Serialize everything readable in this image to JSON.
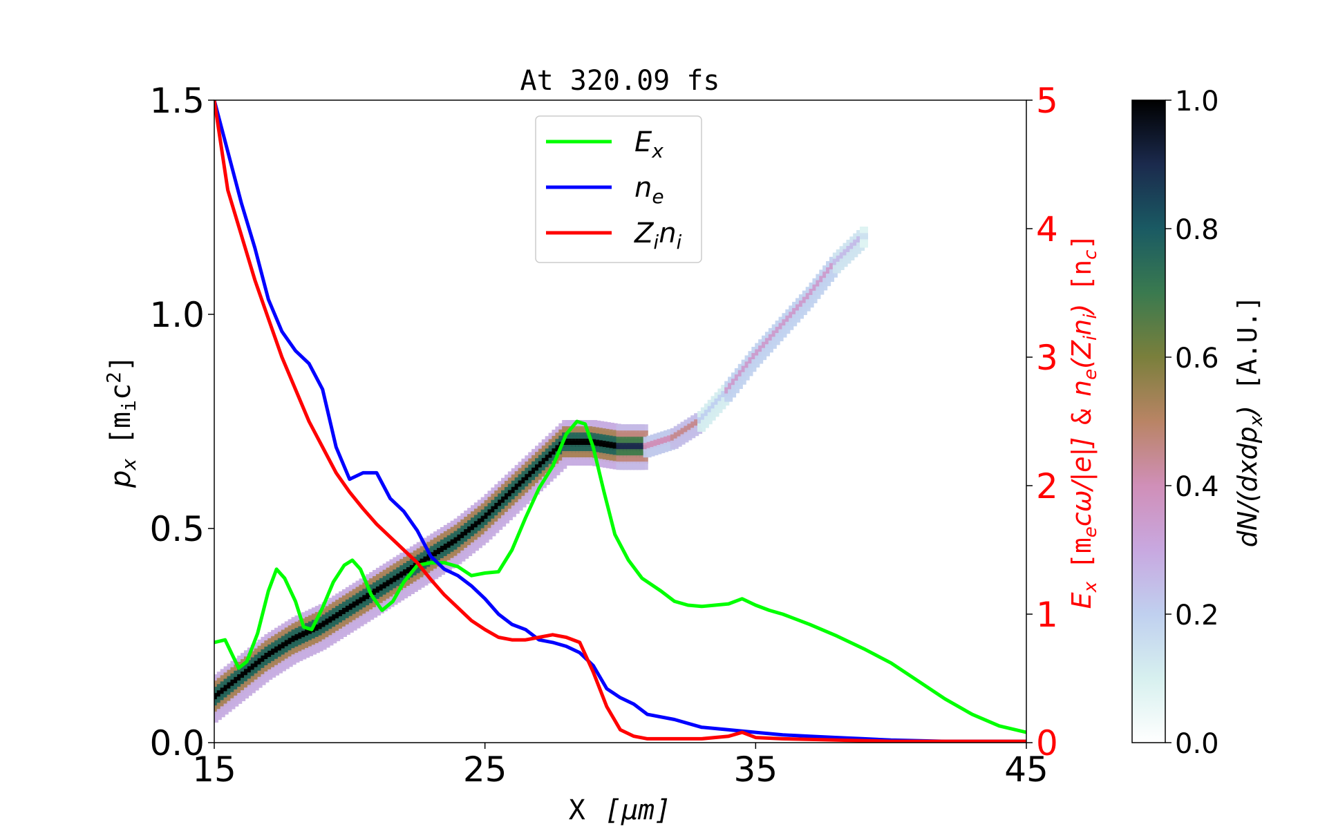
{
  "chart_data": {
    "type": "line",
    "title": "At 320.09 fs",
    "xlabel": {
      "main": "X",
      "unit": "[μm]"
    },
    "ylabel_left": {
      "sym": "p",
      "sub": "x",
      "unit": "[m",
      "unit_sub": "i",
      "unit_tail": "c",
      "unit_sup": "2",
      "unit_close": "]"
    },
    "ylabel_right": {
      "part1": "E",
      "part1_sub": "x",
      "part2": "[m",
      "part2_sub": "e",
      "part3": "cω/|e|]",
      "amp": "&",
      "part4": "n",
      "part4_sub": "e",
      "part5": "(Z",
      "part5_sub": "i",
      "part6": "n",
      "part6_sub": "i",
      "part7": ")",
      "part8": "[n",
      "part8_sub": "c",
      "part9": "]"
    },
    "colorbar_label": {
      "a": "dN/(dxdp",
      "a_sub": "x",
      "a_close": ")",
      "unit": "[A.U.]"
    },
    "xlim": [
      15,
      45
    ],
    "ylim_left": [
      0,
      1.5
    ],
    "ylim_right": [
      0,
      5
    ],
    "colorbar_lim": [
      0,
      1
    ],
    "xticks": [
      "15",
      "25",
      "35",
      "45"
    ],
    "xtick_values": [
      15,
      25,
      35,
      45
    ],
    "yticks_left": [
      "0.0",
      "0.5",
      "1.0",
      "1.5"
    ],
    "ytick_values_left": [
      0,
      0.5,
      1.0,
      1.5
    ],
    "yticks_right": [
      "0",
      "1",
      "2",
      "3",
      "4",
      "5"
    ],
    "ytick_values_right": [
      0,
      1,
      2,
      3,
      4,
      5
    ],
    "colorbar_ticks": [
      "0.0",
      "0.2",
      "0.4",
      "0.6",
      "0.8",
      "1.0"
    ],
    "colorbar_tick_values": [
      0,
      0.2,
      0.4,
      0.6,
      0.8,
      1.0
    ],
    "legend": {
      "placement": "top-center",
      "entries": [
        {
          "sym": "E",
          "sub": "x",
          "color": "#00ff00"
        },
        {
          "sym": "n",
          "sub": "e",
          "color": "#0000ff"
        },
        {
          "sym": "Z",
          "sub": "i",
          "sym2": "n",
          "sub2": "i",
          "color": "#ff0000"
        }
      ]
    },
    "series": [
      {
        "key": "Ex",
        "axis": "right",
        "color": "#00ff00",
        "x": [
          15,
          15.4,
          15.9,
          16.2,
          16.6,
          17.0,
          17.3,
          17.6,
          18.0,
          18.3,
          18.6,
          19.0,
          19.4,
          19.8,
          20.1,
          20.4,
          20.8,
          21.2,
          21.6,
          22.0,
          22.5,
          23.0,
          23.5,
          24.0,
          24.5,
          25.0,
          25.5,
          26.0,
          26.5,
          27.0,
          27.5,
          28.0,
          28.4,
          28.7,
          29.0,
          29.4,
          29.8,
          30.3,
          30.8,
          31.5,
          32.0,
          32.5,
          33.0,
          33.5,
          34.0,
          34.5,
          35.0,
          35.5,
          36.0,
          37.0,
          38.0,
          39.0,
          40.0,
          41.0,
          42.0,
          43.0,
          44.0,
          45.0
        ],
        "y": [
          0.78,
          0.8,
          0.58,
          0.63,
          0.85,
          1.18,
          1.35,
          1.28,
          1.1,
          0.9,
          0.88,
          1.05,
          1.25,
          1.38,
          1.42,
          1.35,
          1.15,
          1.03,
          1.1,
          1.25,
          1.38,
          1.4,
          1.4,
          1.37,
          1.3,
          1.32,
          1.33,
          1.5,
          1.75,
          1.98,
          2.15,
          2.4,
          2.5,
          2.48,
          2.3,
          1.95,
          1.62,
          1.42,
          1.28,
          1.18,
          1.1,
          1.07,
          1.06,
          1.07,
          1.08,
          1.12,
          1.07,
          1.03,
          1.0,
          0.92,
          0.83,
          0.73,
          0.62,
          0.48,
          0.34,
          0.22,
          0.13,
          0.08
        ]
      },
      {
        "key": "ne",
        "axis": "right",
        "color": "#0000ff",
        "x": [
          15,
          15.5,
          16.0,
          16.5,
          17.0,
          17.5,
          18.0,
          18.5,
          19.0,
          19.5,
          20.0,
          20.5,
          21.0,
          21.5,
          22.0,
          22.5,
          23.0,
          23.5,
          24.0,
          24.5,
          25.0,
          25.5,
          26.0,
          26.5,
          27.0,
          27.5,
          28.0,
          28.5,
          29.0,
          29.5,
          30.0,
          30.5,
          31.0,
          32.0,
          33.0,
          34.0,
          35.0,
          36.0,
          37.0,
          38.0,
          39.0,
          40.0,
          42.0,
          45.0
        ],
        "y": [
          5.0,
          4.6,
          4.2,
          3.85,
          3.45,
          3.2,
          3.05,
          2.95,
          2.75,
          2.3,
          2.05,
          2.1,
          2.1,
          1.9,
          1.8,
          1.65,
          1.45,
          1.35,
          1.3,
          1.22,
          1.12,
          1.0,
          0.92,
          0.88,
          0.8,
          0.78,
          0.75,
          0.7,
          0.6,
          0.42,
          0.35,
          0.3,
          0.22,
          0.18,
          0.12,
          0.1,
          0.08,
          0.06,
          0.05,
          0.04,
          0.03,
          0.02,
          0.01,
          0.01
        ]
      },
      {
        "key": "Zini",
        "axis": "right",
        "color": "#ff0000",
        "x": [
          15,
          15.5,
          16.0,
          16.5,
          17.0,
          17.5,
          18.0,
          18.5,
          19.0,
          19.5,
          20.0,
          20.5,
          21.0,
          21.5,
          22.0,
          22.5,
          23.0,
          23.5,
          24.0,
          24.5,
          25.0,
          25.5,
          26.0,
          26.5,
          27.0,
          27.5,
          28.0,
          28.5,
          29.0,
          29.5,
          30.0,
          30.5,
          31.0,
          32.0,
          33.0,
          34.0,
          34.5,
          35.0,
          36.0,
          38.0,
          40.0,
          42.0,
          45.0
        ],
        "y": [
          5.0,
          4.3,
          3.95,
          3.6,
          3.3,
          3.0,
          2.75,
          2.5,
          2.3,
          2.1,
          1.95,
          1.82,
          1.7,
          1.6,
          1.5,
          1.4,
          1.27,
          1.15,
          1.05,
          0.95,
          0.88,
          0.82,
          0.8,
          0.8,
          0.82,
          0.84,
          0.82,
          0.78,
          0.55,
          0.28,
          0.1,
          0.05,
          0.03,
          0.03,
          0.03,
          0.05,
          0.08,
          0.04,
          0.03,
          0.02,
          0.01,
          0.01,
          0.01
        ]
      }
    ],
    "phase_space": {
      "axis": "left",
      "colormap": "cubehelix_r",
      "points": [
        {
          "x": 15.0,
          "px": 0.1,
          "w": 1.0
        },
        {
          "x": 16.0,
          "px": 0.15,
          "w": 1.0
        },
        {
          "x": 17.0,
          "px": 0.2,
          "w": 1.0
        },
        {
          "x": 18.0,
          "px": 0.24,
          "w": 1.0
        },
        {
          "x": 19.0,
          "px": 0.27,
          "w": 1.0
        },
        {
          "x": 20.0,
          "px": 0.31,
          "w": 1.0
        },
        {
          "x": 21.0,
          "px": 0.35,
          "w": 1.0
        },
        {
          "x": 22.0,
          "px": 0.39,
          "w": 1.0
        },
        {
          "x": 23.0,
          "px": 0.43,
          "w": 1.0
        },
        {
          "x": 24.0,
          "px": 0.47,
          "w": 1.0
        },
        {
          "x": 25.0,
          "px": 0.52,
          "w": 1.0
        },
        {
          "x": 26.0,
          "px": 0.58,
          "w": 1.0
        },
        {
          "x": 27.0,
          "px": 0.64,
          "w": 1.0
        },
        {
          "x": 28.0,
          "px": 0.7,
          "w": 1.0
        },
        {
          "x": 29.0,
          "px": 0.7,
          "w": 1.0
        },
        {
          "x": 30.0,
          "px": 0.69,
          "w": 0.9
        },
        {
          "x": 31.0,
          "px": 0.69,
          "w": 0.4
        },
        {
          "x": 32.0,
          "px": 0.71,
          "w": 0.45
        },
        {
          "x": 33.0,
          "px": 0.75,
          "w": 0.2
        },
        {
          "x": 34.0,
          "px": 0.82,
          "w": 0.35
        },
        {
          "x": 35.0,
          "px": 0.9,
          "w": 0.35
        },
        {
          "x": 36.0,
          "px": 0.97,
          "w": 0.35
        },
        {
          "x": 37.0,
          "px": 1.04,
          "w": 0.35
        },
        {
          "x": 38.0,
          "px": 1.12,
          "w": 0.25
        },
        {
          "x": 39.0,
          "px": 1.18,
          "w": 0.15
        }
      ]
    }
  }
}
